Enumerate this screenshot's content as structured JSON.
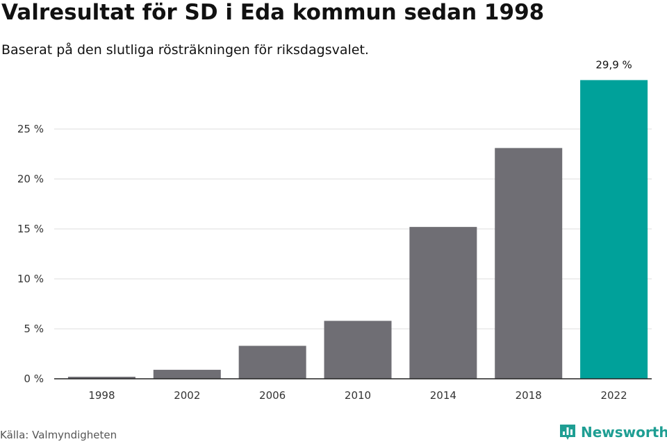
{
  "header": {
    "title": "Valresultat för SD i Eda kommun sedan 1998",
    "subtitle": "Baserat på den slutliga rösträkningen för riksdagsvalet."
  },
  "footer": {
    "source": "Källa: Valmyndigheten",
    "brand": "Newsworthy"
  },
  "colors": {
    "bar_default": "#6f6e74",
    "bar_highlight": "#00a19a",
    "gridline": "#dcdcdc",
    "axis": "#222222",
    "brand": "#1e9e93"
  },
  "icons": {
    "logo": "newsworthy-logo-icon"
  },
  "chart_data": {
    "type": "bar",
    "categories": [
      "1998",
      "2002",
      "2006",
      "2010",
      "2014",
      "2018",
      "2022"
    ],
    "values": [
      0.2,
      0.9,
      3.3,
      5.8,
      15.2,
      23.1,
      29.9
    ],
    "highlight_index": 6,
    "data_labels": [
      {
        "index": 6,
        "text": "29,9 %"
      }
    ],
    "ylim": [
      0,
      30
    ],
    "yticks": [
      0,
      5,
      10,
      15,
      20,
      25
    ],
    "ytick_labels": [
      "0 %",
      "5 %",
      "10 %",
      "15 %",
      "20 %",
      "25 %"
    ],
    "grid": true,
    "legend": "none"
  }
}
